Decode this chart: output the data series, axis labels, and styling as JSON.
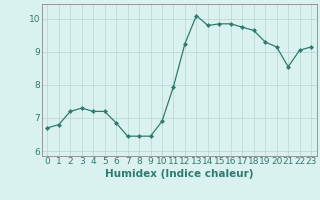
{
  "x": [
    0,
    1,
    2,
    3,
    4,
    5,
    6,
    7,
    8,
    9,
    10,
    11,
    12,
    13,
    14,
    15,
    16,
    17,
    18,
    19,
    20,
    21,
    22,
    23
  ],
  "y": [
    6.7,
    6.8,
    7.2,
    7.3,
    7.2,
    7.2,
    6.85,
    6.45,
    6.45,
    6.45,
    6.9,
    7.95,
    9.25,
    10.1,
    9.8,
    9.85,
    9.85,
    9.75,
    9.65,
    9.3,
    9.15,
    8.55,
    9.05,
    9.15
  ],
  "xlabel": "Humidex (Indice chaleur)",
  "xlim": [
    -0.5,
    23.5
  ],
  "ylim": [
    5.85,
    10.45
  ],
  "yticks": [
    6,
    7,
    8,
    9,
    10
  ],
  "xticks": [
    0,
    1,
    2,
    3,
    4,
    5,
    6,
    7,
    8,
    9,
    10,
    11,
    12,
    13,
    14,
    15,
    16,
    17,
    18,
    19,
    20,
    21,
    22,
    23
  ],
  "line_color": "#2d7d6e",
  "marker": "D",
  "marker_size": 2.0,
  "bg_color": "#d9f2ef",
  "grid_color": "#b8d4d0",
  "axes_color": "#888888",
  "tick_color": "#2d7d6e",
  "xlabel_color": "#2d7d6e",
  "xlabel_fontsize": 7.5,
  "tick_fontsize": 6.5
}
